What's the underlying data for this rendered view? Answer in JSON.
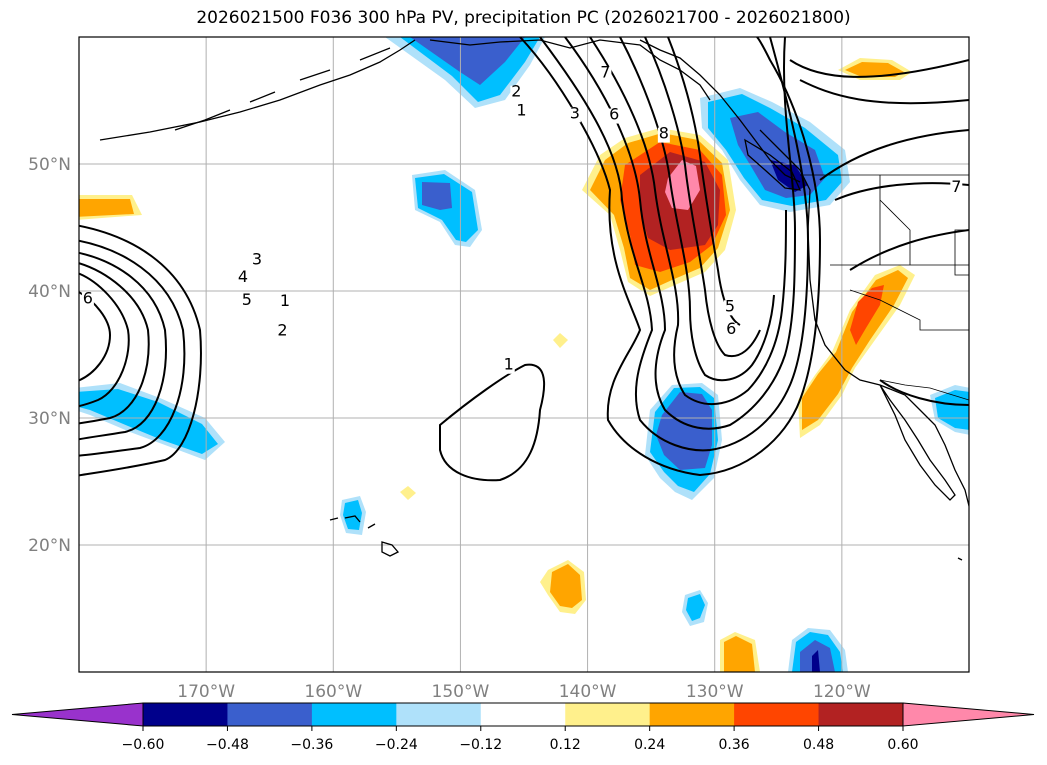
{
  "title": "2026021500 F036 300 hPa PV, precipitation PC (2026021700 - 2026021800)",
  "map": {
    "lon_range": [
      -180,
      -110
    ],
    "lat_range": [
      10,
      60
    ],
    "lon_ticks": [
      {
        "value": -170,
        "label": "170°W"
      },
      {
        "value": -160,
        "label": "160°W"
      },
      {
        "value": -150,
        "label": "150°W"
      },
      {
        "value": -140,
        "label": "140°W"
      },
      {
        "value": -130,
        "label": "130°W"
      },
      {
        "value": -120,
        "label": "120°W"
      }
    ],
    "lat_ticks": [
      {
        "value": 20,
        "label": "20°N"
      },
      {
        "value": 30,
        "label": "30°N"
      },
      {
        "value": 40,
        "label": "40°N"
      },
      {
        "value": 50,
        "label": "50°N"
      }
    ],
    "grid": true,
    "contour_labels": [
      {
        "text": "1",
        "lon": -163.8,
        "lat": 38.8
      },
      {
        "text": "2",
        "lon": -164.0,
        "lat": 36.5
      },
      {
        "text": "3",
        "lon": -166.0,
        "lat": 42.1
      },
      {
        "text": "4",
        "lon": -167.1,
        "lat": 40.7
      },
      {
        "text": "5",
        "lon": -166.8,
        "lat": 38.9
      },
      {
        "text": "6",
        "lon": -179.3,
        "lat": 39.0
      },
      {
        "text": "1",
        "lon": -146.2,
        "lat": 33.8
      },
      {
        "text": "1",
        "lon": -145.2,
        "lat": 53.8
      },
      {
        "text": "2",
        "lon": -145.6,
        "lat": 55.3
      },
      {
        "text": "3",
        "lon": -141.0,
        "lat": 53.6
      },
      {
        "text": "7",
        "lon": -138.6,
        "lat": 56.8
      },
      {
        "text": "6",
        "lon": -137.9,
        "lat": 53.5
      },
      {
        "text": "8",
        "lon": -134.0,
        "lat": 52.0
      },
      {
        "text": "5",
        "lon": -128.8,
        "lat": 38.4
      },
      {
        "text": "6",
        "lon": -128.7,
        "lat": 36.6
      },
      {
        "text": "7",
        "lon": -111.0,
        "lat": 47.8
      }
    ]
  },
  "colorbar": {
    "colors": [
      "#9932cc",
      "#00008b",
      "#3a5fcd",
      "#00bfff",
      "#afe1fa",
      "#ffffff",
      "#fff08c",
      "#ffa500",
      "#ff4500",
      "#b22222",
      "#ff88aa"
    ],
    "labels": [
      "−0.60",
      "−0.48",
      "−0.36",
      "−0.24",
      "−0.12",
      "0.12",
      "0.24",
      "0.36",
      "0.48",
      "0.60"
    ]
  }
}
